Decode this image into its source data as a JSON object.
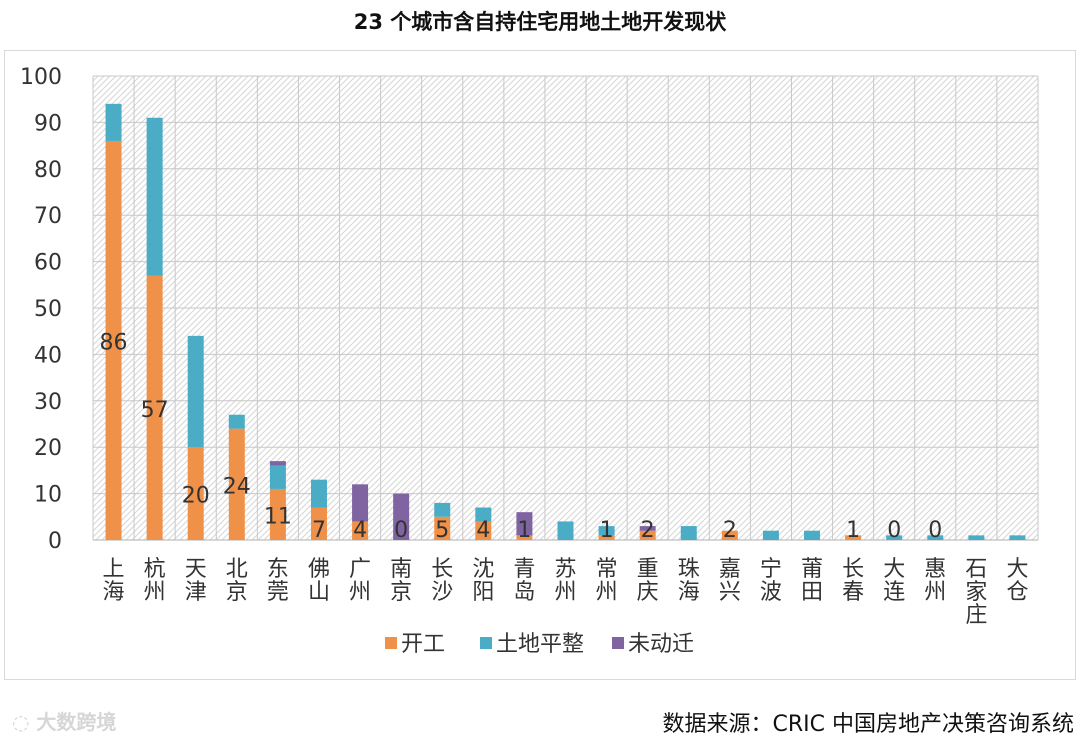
{
  "watermark": "大数跨境",
  "source": "数据来源：CRIC 中国房地产决策咨询系统",
  "chart_data": {
    "type": "bar",
    "stacked": true,
    "title": "23 个城市含自持住宅用地土地开发现状",
    "categories": [
      "上海",
      "杭州",
      "天津",
      "北京",
      "东莞",
      "佛山",
      "广州",
      "南京",
      "长沙",
      "沈阳",
      "青岛",
      "苏州",
      "常州",
      "重庆",
      "珠海",
      "嘉兴",
      "宁波",
      "莆田",
      "长春",
      "大连",
      "惠州",
      "石家庄",
      "大仓"
    ],
    "series": [
      {
        "name": "开工",
        "color": "#F0914A",
        "values": [
          86,
          57,
          20,
          24,
          11,
          7,
          4,
          0,
          5,
          4,
          1,
          0,
          1,
          2,
          0,
          2,
          0,
          0,
          1,
          0,
          0,
          0,
          0
        ]
      },
      {
        "name": "土地平整",
        "color": "#4BACC6",
        "values": [
          8,
          34,
          24,
          3,
          5,
          6,
          0,
          0,
          3,
          3,
          0,
          4,
          2,
          0,
          3,
          0,
          2,
          2,
          0,
          1,
          1,
          1,
          1
        ]
      },
      {
        "name": "未动迁",
        "color": "#8064A2",
        "values": [
          0,
          0,
          0,
          0,
          1,
          0,
          8,
          10,
          0,
          0,
          5,
          0,
          0,
          1,
          0,
          0,
          0,
          0,
          0,
          0,
          0,
          0,
          0
        ]
      }
    ],
    "data_labels": [
      "86",
      "57",
      "20",
      "24",
      "11",
      "7",
      "4",
      "0",
      "5",
      "4",
      "1",
      "",
      "1",
      "2",
      "",
      "2",
      "",
      "",
      "1",
      "0",
      "0",
      "",
      ""
    ],
    "ylim": [
      0,
      100
    ],
    "yticks": [
      0,
      10,
      20,
      30,
      40,
      50,
      60,
      70,
      80,
      90,
      100
    ],
    "grid": true,
    "legend_position": "bottom"
  }
}
